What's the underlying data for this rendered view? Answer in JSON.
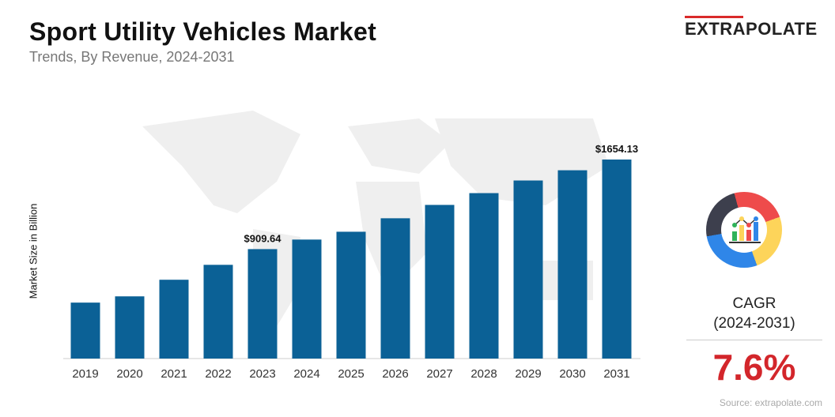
{
  "header": {
    "title": "Sport Utility Vehicles Market",
    "subtitle": "Trends, By Revenue, 2024-2031"
  },
  "logo": {
    "text": "EXTRAPOLATE"
  },
  "cagr": {
    "label_line1": "CAGR",
    "label_line2": "(2024-2031)",
    "value": "7.6%",
    "icon": "chart-donut-icon"
  },
  "source": "Source: extrapolate.com",
  "colors": {
    "bar": "#0b6196",
    "cagr": "#d3262b",
    "logo_accent": "#d92a2a"
  },
  "chart_data": {
    "type": "bar",
    "title": "Sport Utility Vehicles Market",
    "ylabel": "Market Size in Billion",
    "xlabel": "",
    "categories": [
      "2019",
      "2020",
      "2021",
      "2022",
      "2023",
      "2024",
      "2025",
      "2026",
      "2027",
      "2028",
      "2029",
      "2030",
      "2031"
    ],
    "values": [
      465,
      517,
      655,
      779,
      909.64,
      989,
      1054,
      1166,
      1277,
      1375,
      1480,
      1565,
      1654.13
    ],
    "data_labels": {
      "2023": "$909.64",
      "2031": "$1654.13"
    },
    "ylim": [
      0,
      1654.13
    ],
    "grid": false
  }
}
